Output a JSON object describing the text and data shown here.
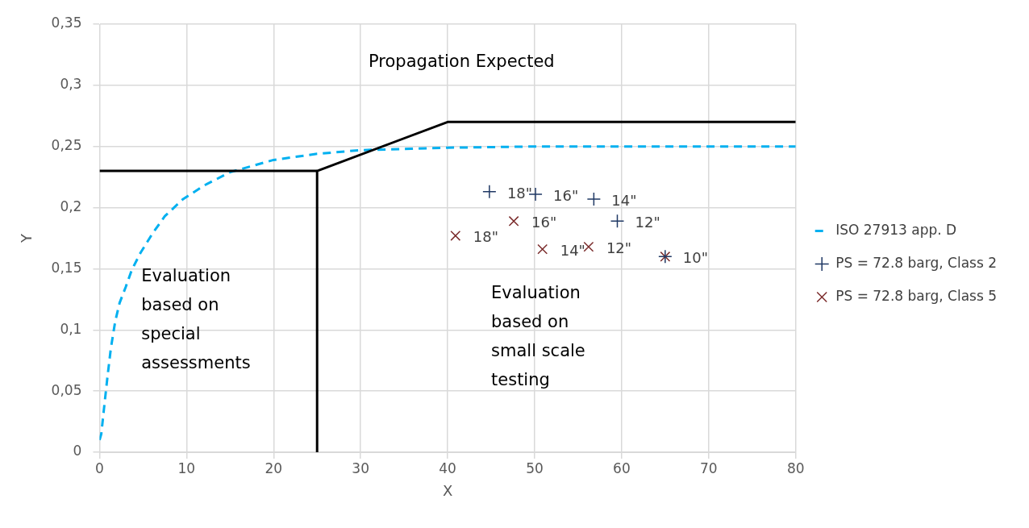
{
  "chart_data": {
    "type": "scatter",
    "xlabel": "X",
    "ylabel": "Y",
    "xlim": [
      0,
      80
    ],
    "ylim": [
      0,
      0.35
    ],
    "xticks": [
      0,
      10,
      20,
      30,
      40,
      50,
      60,
      70,
      80
    ],
    "yticks": [
      {
        "value": 0,
        "label": "0"
      },
      {
        "value": 0.05,
        "label": "0,05"
      },
      {
        "value": 0.1,
        "label": "0,1"
      },
      {
        "value": 0.15,
        "label": "0,15"
      },
      {
        "value": 0.2,
        "label": "0,2"
      },
      {
        "value": 0.25,
        "label": "0,25"
      },
      {
        "value": 0.3,
        "label": "0,3"
      },
      {
        "value": 0.35,
        "label": "0,35"
      }
    ],
    "grid": true,
    "legend": "right",
    "series": [
      {
        "type": "line",
        "color": "#000000",
        "line_style": "solid",
        "marker": "none",
        "x": [
          0,
          25
        ],
        "values": [
          0.23,
          0.23
        ]
      },
      {
        "type": "line",
        "color": "#000000",
        "line_style": "solid",
        "marker": "none",
        "x": [
          25,
          25,
          40,
          80
        ],
        "values": [
          0,
          0.23,
          0.27,
          0.27
        ]
      },
      {
        "type": "line",
        "name": "ISO 27913 app. D",
        "color": "#00b0f0",
        "line_style": "dashed",
        "marker": "none",
        "x": [
          0,
          0.2,
          0.5,
          0.9,
          1.3,
          1.8,
          2.3,
          3,
          3.7,
          4.7,
          6.1,
          7.5,
          9.6,
          12,
          15,
          20,
          25,
          30,
          40,
          50,
          60,
          70,
          80
        ],
        "values": [
          0.01,
          0.015,
          0.035,
          0.061,
          0.085,
          0.107,
          0.122,
          0.135,
          0.149,
          0.163,
          0.179,
          0.193,
          0.207,
          0.218,
          0.229,
          0.239,
          0.244,
          0.247,
          0.249,
          0.25,
          0.25,
          0.25,
          0.25
        ]
      },
      {
        "name": "PS = 72.8 barg, Class 2",
        "color": "#1f3864",
        "marker": "cross",
        "x": [
          44.8,
          50.1,
          56.8,
          59.5,
          65
        ],
        "values": [
          0.213,
          0.211,
          0.207,
          0.189,
          0.16
        ]
      },
      {
        "name": "PS = 72.8 barg, Class 5",
        "color": "#7b2c2c",
        "marker": "x",
        "x": [
          40.9,
          47.6,
          50.9,
          56.2,
          65
        ],
        "values": [
          0.177,
          0.189,
          0.166,
          0.168,
          0.16
        ]
      }
    ],
    "annotations": [
      "Propagation Expected",
      "Evaluation based on special assessments",
      "Evaluation based on small scale testing",
      {
        "text": "18\"",
        "x": 44.8,
        "y": 0.213
      },
      {
        "text": "16\"",
        "x": 50.1,
        "y": 0.211
      },
      {
        "text": "14\"",
        "x": 56.8,
        "y": 0.207
      },
      {
        "text": "12\"",
        "x": 59.5,
        "y": 0.189
      },
      {
        "text": "10\"",
        "x": 65,
        "y": 0.16
      },
      {
        "text": "18\"",
        "x": 40.9,
        "y": 0.177
      },
      {
        "text": "16\"",
        "x": 47.6,
        "y": 0.189
      },
      {
        "text": "14\"",
        "x": 50.9,
        "y": 0.166
      },
      {
        "text": "12\"",
        "x": 56.2,
        "y": 0.168
      }
    ]
  }
}
